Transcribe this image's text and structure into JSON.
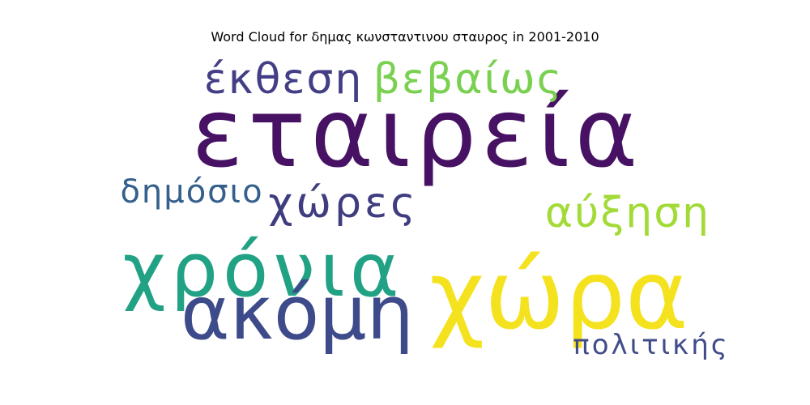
{
  "chart_data": {
    "type": "wordcloud",
    "title": "Word Cloud for δημας κωνσταντινου σταυρος in 2001-2010",
    "words": [
      {
        "text": "εταιρεία",
        "weight": 1.0,
        "color": "#471164"
      },
      {
        "text": "χώρα",
        "weight": 0.85,
        "color": "#f5e21f"
      },
      {
        "text": "χρόνια",
        "weight": 0.7,
        "color": "#22a285"
      },
      {
        "text": "ακόμη",
        "weight": 0.62,
        "color": "#3e4b8a"
      },
      {
        "text": "χώρες",
        "weight": 0.4,
        "color": "#3f3d7f"
      },
      {
        "text": "έκθεση",
        "weight": 0.38,
        "color": "#433e85"
      },
      {
        "text": "βεβαίως",
        "weight": 0.38,
        "color": "#7ad151"
      },
      {
        "text": "αύξηση",
        "weight": 0.36,
        "color": "#a2da37"
      },
      {
        "text": "δημόσιο",
        "weight": 0.3,
        "color": "#35608d"
      },
      {
        "text": "πολιτικής",
        "weight": 0.22,
        "color": "#424c89"
      }
    ]
  }
}
